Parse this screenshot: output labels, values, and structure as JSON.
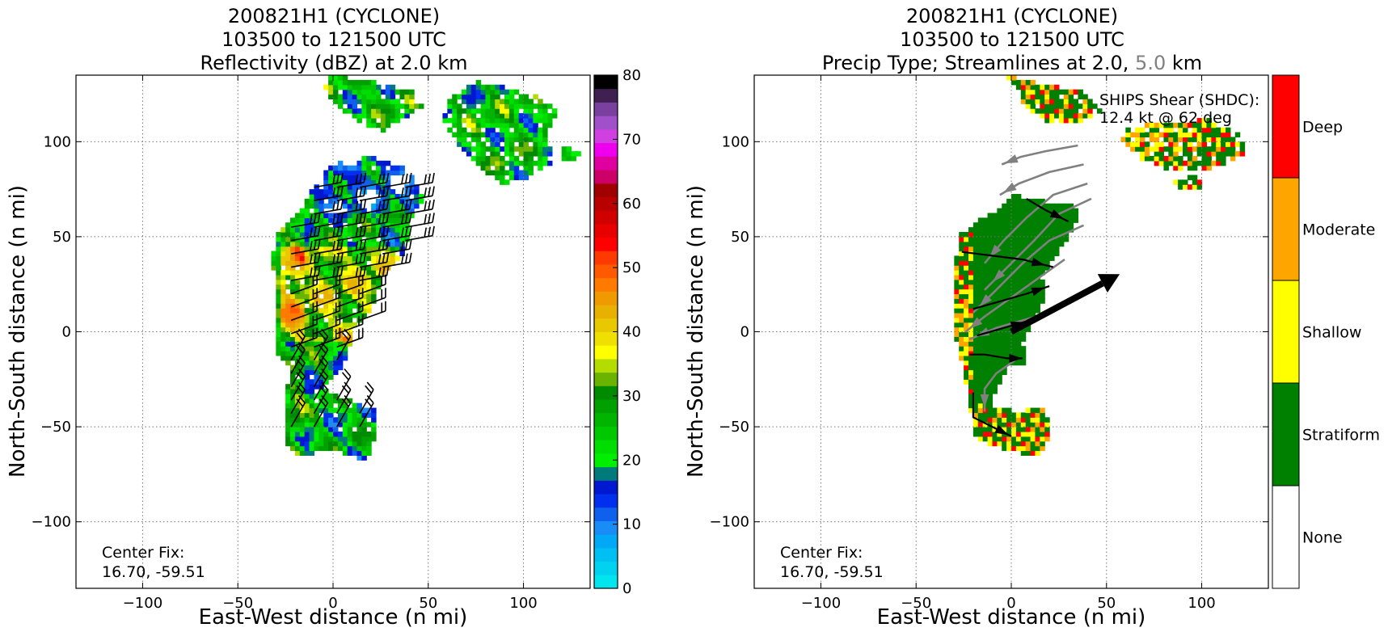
{
  "colors": {
    "deep": "#ff0000",
    "moderate": "#ffa500",
    "shallow": "#ffff00",
    "stratiform": "#008000",
    "none": "#ffffff",
    "streamline_upper": "#808080",
    "streamline_lower": "#000000"
  },
  "reflectivity_colors": [
    "#00e5ee",
    "#00d2f0",
    "#00bff2",
    "#00a8f5",
    "#1a8cf5",
    "#1060ee",
    "#0030ee",
    "#0018d0",
    "#007a7a",
    "#00ee00",
    "#00dd00",
    "#00c800",
    "#00b400",
    "#00a000",
    "#008a00",
    "#6ab400",
    "#b4dc00",
    "#ffff00",
    "#f0e000",
    "#e8c800",
    "#e8b000",
    "#ee9a00",
    "#ff7a00",
    "#ff5a00",
    "#ff3a00",
    "#ff0000",
    "#e80000",
    "#d00000",
    "#b80000",
    "#a00000",
    "#cc0066",
    "#e000a0",
    "#ee00ee",
    "#d040e0",
    "#a050c8",
    "#7a40a0",
    "#402050",
    "#000000"
  ],
  "chart_data": [
    {
      "type": "heatmap",
      "title": [
        "200821H1 (CYCLONE)",
        "103500 to 121500 UTC",
        "Reflectivity (dBZ) at 2.0 km"
      ],
      "xlabel": "East-West distance (n mi)",
      "ylabel": "North-South distance (n mi)",
      "xlim": [
        -135,
        135
      ],
      "ylim": [
        -135,
        135
      ],
      "xticks": [
        -100,
        -50,
        0,
        50,
        100
      ],
      "yticks": [
        -100,
        -50,
        0,
        50,
        100
      ],
      "grid": true,
      "annotation": [
        "Center Fix:",
        "16.70, -59.51"
      ],
      "colorbar": {
        "label": "",
        "range": [
          0,
          80
        ],
        "ticks": [
          0,
          10,
          20,
          30,
          40,
          50,
          60,
          70,
          80
        ]
      },
      "overlay": "wind barbs"
    },
    {
      "type": "heatmap",
      "title": [
        "200821H1 (CYCLONE)",
        "103500 to 121500 UTC"
      ],
      "title_line3": {
        "before": "Precip Type; Streamlines at 2.0, ",
        "highlight": "5.0",
        "after": " km"
      },
      "xlabel": "East-West distance (n mi)",
      "ylabel": "North-South distance (n mi)",
      "xlim": [
        -135,
        135
      ],
      "ylim": [
        -135,
        135
      ],
      "xticks": [
        -100,
        -50,
        0,
        50,
        100
      ],
      "yticks": [
        -100,
        -50,
        0,
        50,
        100
      ],
      "grid": true,
      "annotation": [
        "Center Fix:",
        "16.70, -59.51"
      ],
      "shear_text": [
        "SHIPS Shear (SHDC):",
        "12.4 kt @ 62 deg"
      ],
      "shear_vector": {
        "speed_kt": 12.4,
        "direction_deg": 62
      },
      "categories": [
        "None",
        "Stratiform",
        "Shallow",
        "Moderate",
        "Deep"
      ],
      "overlay": "streamlines"
    }
  ]
}
